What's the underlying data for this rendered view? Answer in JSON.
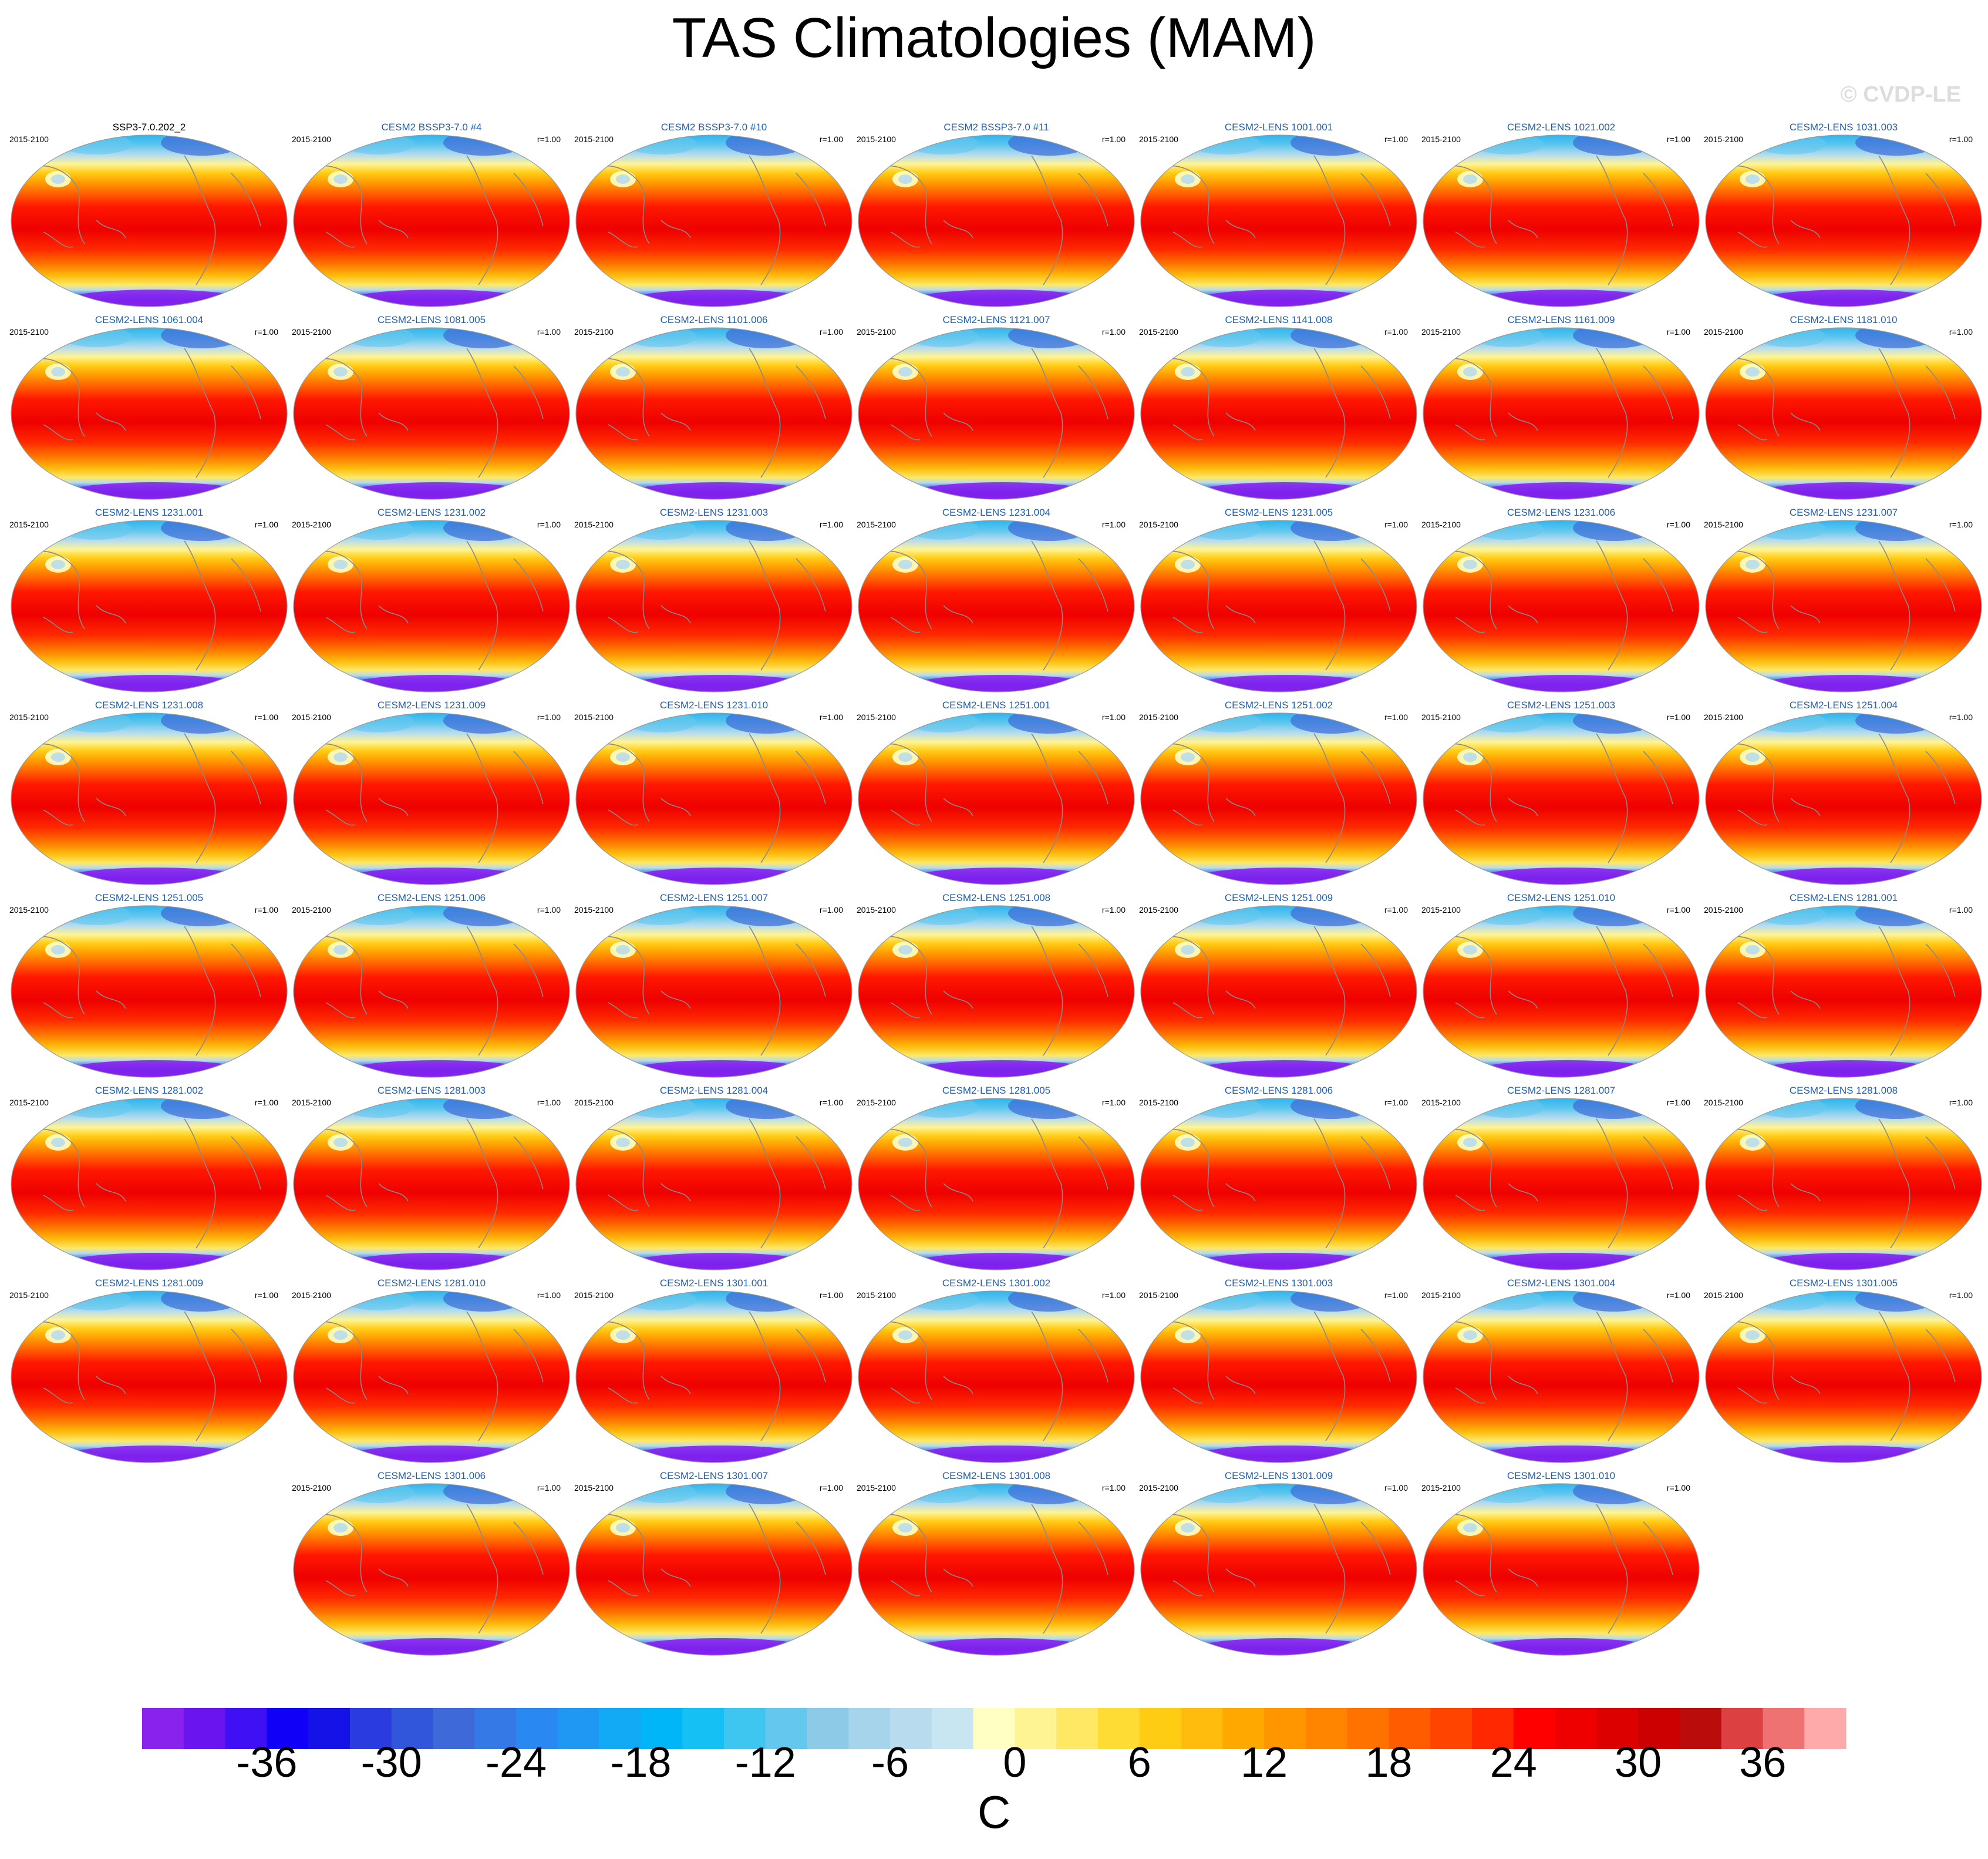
{
  "title": "TAS Climatologies (MAM)",
  "watermark": "© CVDP-LE",
  "colorbar": {
    "units": "C",
    "tick_labels": [
      "-36",
      "-30",
      "-24",
      "-18",
      "-12",
      "-6",
      "0",
      "6",
      "12",
      "18",
      "24",
      "30",
      "36"
    ],
    "colors": [
      "#8a22ee",
      "#6a14f0",
      "#3f10f4",
      "#1000f8",
      "#1412e6",
      "#2a3ce0",
      "#3156dc",
      "#3d6ad8",
      "#3479e6",
      "#2a88f2",
      "#1f98f4",
      "#12aaf4",
      "#00b6f8",
      "#14c0f4",
      "#3ec6f0",
      "#64c8ee",
      "#8ccae8",
      "#a6d4ea",
      "#b8dcee",
      "#c8e6f2",
      "#ffffc4",
      "#fff494",
      "#ffe864",
      "#ffdc34",
      "#ffcc14",
      "#ffbc0c",
      "#ffa800",
      "#ff9600",
      "#ff8400",
      "#ff7200",
      "#ff5c00",
      "#ff4400",
      "#ff2800",
      "#ff0000",
      "#ee0000",
      "#dd0000",
      "#cc0000",
      "#bb0c0c",
      "#dd4040",
      "#ee7272",
      "#ffaaaa"
    ]
  },
  "panels": [
    {
      "name": "SSP3-7.0.202_2",
      "years": "2015-2100",
      "corr": "",
      "obs": true
    },
    {
      "name": "CESM2 BSSP3-7.0 #4",
      "years": "2015-2100",
      "corr": "r=1.00"
    },
    {
      "name": "CESM2 BSSP3-7.0 #10",
      "years": "2015-2100",
      "corr": "r=1.00"
    },
    {
      "name": "CESM2 BSSP3-7.0 #11",
      "years": "2015-2100",
      "corr": "r=1.00"
    },
    {
      "name": "CESM2-LENS 1001.001",
      "years": "2015-2100",
      "corr": "r=1.00"
    },
    {
      "name": "CESM2-LENS 1021.002",
      "years": "2015-2100",
      "corr": "r=1.00"
    },
    {
      "name": "CESM2-LENS 1031.003",
      "years": "2015-2100",
      "corr": "r=1.00"
    },
    {
      "name": "CESM2-LENS 1061.004",
      "years": "2015-2100",
      "corr": "r=1.00"
    },
    {
      "name": "CESM2-LENS 1081.005",
      "years": "2015-2100",
      "corr": "r=1.00"
    },
    {
      "name": "CESM2-LENS 1101.006",
      "years": "2015-2100",
      "corr": "r=1.00"
    },
    {
      "name": "CESM2-LENS 1121.007",
      "years": "2015-2100",
      "corr": "r=1.00"
    },
    {
      "name": "CESM2-LENS 1141.008",
      "years": "2015-2100",
      "corr": "r=1.00"
    },
    {
      "name": "CESM2-LENS 1161.009",
      "years": "2015-2100",
      "corr": "r=1.00"
    },
    {
      "name": "CESM2-LENS 1181.010",
      "years": "2015-2100",
      "corr": "r=1.00"
    },
    {
      "name": "CESM2-LENS 1231.001",
      "years": "2015-2100",
      "corr": "r=1.00"
    },
    {
      "name": "CESM2-LENS 1231.002",
      "years": "2015-2100",
      "corr": "r=1.00"
    },
    {
      "name": "CESM2-LENS 1231.003",
      "years": "2015-2100",
      "corr": "r=1.00"
    },
    {
      "name": "CESM2-LENS 1231.004",
      "years": "2015-2100",
      "corr": "r=1.00"
    },
    {
      "name": "CESM2-LENS 1231.005",
      "years": "2015-2100",
      "corr": "r=1.00"
    },
    {
      "name": "CESM2-LENS 1231.006",
      "years": "2015-2100",
      "corr": "r=1.00"
    },
    {
      "name": "CESM2-LENS 1231.007",
      "years": "2015-2100",
      "corr": "r=1.00"
    },
    {
      "name": "CESM2-LENS 1231.008",
      "years": "2015-2100",
      "corr": "r=1.00"
    },
    {
      "name": "CESM2-LENS 1231.009",
      "years": "2015-2100",
      "corr": "r=1.00"
    },
    {
      "name": "CESM2-LENS 1231.010",
      "years": "2015-2100",
      "corr": "r=1.00"
    },
    {
      "name": "CESM2-LENS 1251.001",
      "years": "2015-2100",
      "corr": "r=1.00"
    },
    {
      "name": "CESM2-LENS 1251.002",
      "years": "2015-2100",
      "corr": "r=1.00"
    },
    {
      "name": "CESM2-LENS 1251.003",
      "years": "2015-2100",
      "corr": "r=1.00"
    },
    {
      "name": "CESM2-LENS 1251.004",
      "years": "2015-2100",
      "corr": "r=1.00"
    },
    {
      "name": "CESM2-LENS 1251.005",
      "years": "2015-2100",
      "corr": "r=1.00"
    },
    {
      "name": "CESM2-LENS 1251.006",
      "years": "2015-2100",
      "corr": "r=1.00"
    },
    {
      "name": "CESM2-LENS 1251.007",
      "years": "2015-2100",
      "corr": "r=1.00"
    },
    {
      "name": "CESM2-LENS 1251.008",
      "years": "2015-2100",
      "corr": "r=1.00"
    },
    {
      "name": "CESM2-LENS 1251.009",
      "years": "2015-2100",
      "corr": "r=1.00"
    },
    {
      "name": "CESM2-LENS 1251.010",
      "years": "2015-2100",
      "corr": "r=1.00"
    },
    {
      "name": "CESM2-LENS 1281.001",
      "years": "2015-2100",
      "corr": "r=1.00"
    },
    {
      "name": "CESM2-LENS 1281.002",
      "years": "2015-2100",
      "corr": "r=1.00"
    },
    {
      "name": "CESM2-LENS 1281.003",
      "years": "2015-2100",
      "corr": "r=1.00"
    },
    {
      "name": "CESM2-LENS 1281.004",
      "years": "2015-2100",
      "corr": "r=1.00"
    },
    {
      "name": "CESM2-LENS 1281.005",
      "years": "2015-2100",
      "corr": "r=1.00"
    },
    {
      "name": "CESM2-LENS 1281.006",
      "years": "2015-2100",
      "corr": "r=1.00"
    },
    {
      "name": "CESM2-LENS 1281.007",
      "years": "2015-2100",
      "corr": "r=1.00"
    },
    {
      "name": "CESM2-LENS 1281.008",
      "years": "2015-2100",
      "corr": "r=1.00"
    },
    {
      "name": "CESM2-LENS 1281.009",
      "years": "2015-2100",
      "corr": "r=1.00"
    },
    {
      "name": "CESM2-LENS 1281.010",
      "years": "2015-2100",
      "corr": "r=1.00"
    },
    {
      "name": "CESM2-LENS 1301.001",
      "years": "2015-2100",
      "corr": "r=1.00"
    },
    {
      "name": "CESM2-LENS 1301.002",
      "years": "2015-2100",
      "corr": "r=1.00"
    },
    {
      "name": "CESM2-LENS 1301.003",
      "years": "2015-2100",
      "corr": "r=1.00"
    },
    {
      "name": "CESM2-LENS 1301.004",
      "years": "2015-2100",
      "corr": "r=1.00"
    },
    {
      "name": "CESM2-LENS 1301.005",
      "years": "2015-2100",
      "corr": "r=1.00"
    },
    {
      "name": "CESM2-LENS 1301.006",
      "years": "2015-2100",
      "corr": "r=1.00"
    },
    {
      "name": "CESM2-LENS 1301.007",
      "years": "2015-2100",
      "corr": "r=1.00"
    },
    {
      "name": "CESM2-LENS 1301.008",
      "years": "2015-2100",
      "corr": "r=1.00"
    },
    {
      "name": "CESM2-LENS 1301.009",
      "years": "2015-2100",
      "corr": "r=1.00"
    },
    {
      "name": "CESM2-LENS 1301.010",
      "years": "2015-2100",
      "corr": "r=1.00"
    }
  ]
}
